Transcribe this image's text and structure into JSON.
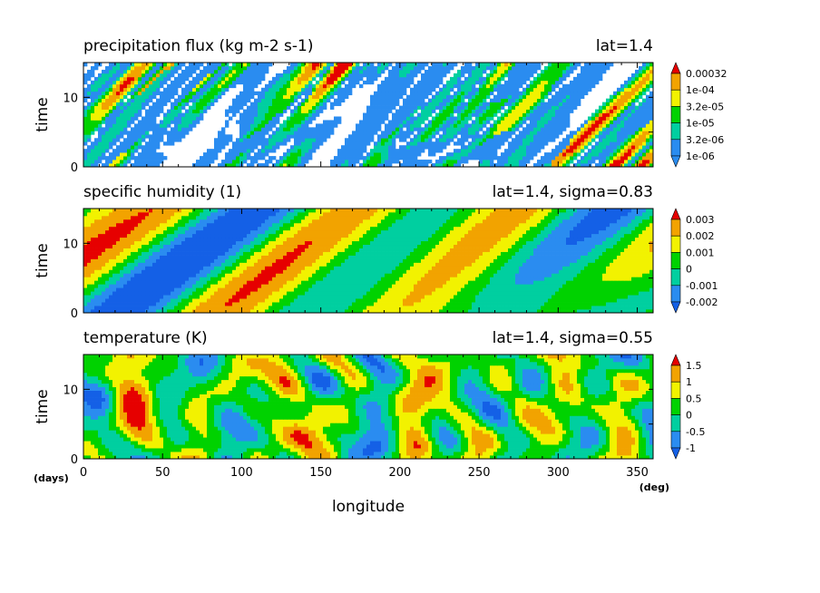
{
  "chart_data": [
    {
      "type": "heatmap",
      "title": "precipitation flux (kg m-2 s-1)",
      "annotation": "lat=1.4",
      "ylabel": "time",
      "yticks": [
        0,
        10
      ],
      "ylim": [
        0,
        15
      ],
      "xlim": [
        0,
        360
      ],
      "levels": [
        "0.00032",
        "1e-04",
        "3.2e-05",
        "1e-05",
        "3.2e-06",
        "1e-06"
      ],
      "colors": [
        "#ffffff",
        "#2a8cf0",
        "#00cfa0",
        "#00d200",
        "#f2f200",
        "#f2a300",
        "#e60000"
      ],
      "field": "sparse"
    },
    {
      "type": "heatmap",
      "title": "specific humidity (1)",
      "annotation": "lat=1.4, sigma=0.83",
      "ylabel": "time",
      "yticks": [
        0,
        10
      ],
      "ylim": [
        0,
        15
      ],
      "xlim": [
        0,
        360
      ],
      "levels": [
        "0.003",
        "0.002",
        "0.001",
        "0",
        "-0.001",
        "-0.002"
      ],
      "colors": [
        "#1460e6",
        "#2a8cf0",
        "#00cfa0",
        "#00d200",
        "#f2f200",
        "#f2a300",
        "#e60000"
      ],
      "field": "diagonal-bands"
    },
    {
      "type": "heatmap",
      "title": "temperature (K)",
      "annotation": "lat=1.4, sigma=0.55",
      "ylabel": "time",
      "yticks": [
        0,
        10
      ],
      "ylim": [
        0,
        15
      ],
      "xlim": [
        0,
        360
      ],
      "levels": [
        "1.5",
        "1",
        "0.5",
        "0",
        "-0.5",
        "-1"
      ],
      "colors": [
        "#1460e6",
        "#2a8cf0",
        "#00cfa0",
        "#00d200",
        "#f2f200",
        "#f2a300",
        "#e60000"
      ],
      "field": "noisy"
    }
  ],
  "shared_axis": {
    "xlabel": "longitude",
    "xticks": [
      0,
      50,
      100,
      150,
      200,
      250,
      300,
      350
    ],
    "x_unit": "(deg)",
    "y_unit": "(days)"
  }
}
